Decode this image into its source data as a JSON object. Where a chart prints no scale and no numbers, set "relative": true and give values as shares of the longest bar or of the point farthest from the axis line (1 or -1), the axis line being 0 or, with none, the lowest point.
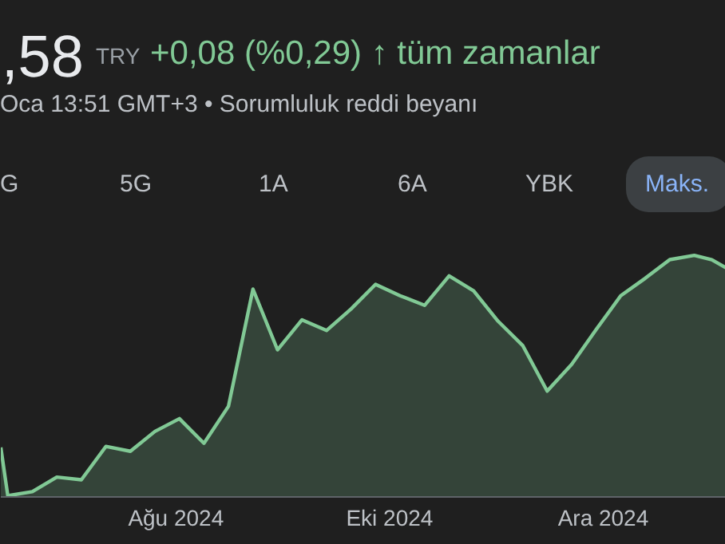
{
  "chart_data": {
    "type": "area",
    "title": ",58",
    "subtitle": "Oca 13:51 GMT+3 • Sorumluluk reddi beyanı",
    "annotations": [
      "TRY",
      "+0,08 (%0,29) ↑ tüm zamanlar",
      "G",
      "5G",
      "1A",
      "6A",
      "YBK",
      "Maks."
    ],
    "relative": true,
    "x": [
      "2024-06-12",
      "2024-06-14",
      "2024-06-21",
      "2024-06-28",
      "2024-07-05",
      "2024-07-12",
      "2024-07-19",
      "2024-07-26",
      "2024-08-02",
      "2024-08-09",
      "2024-08-16",
      "2024-08-23",
      "2024-08-30",
      "2024-09-06",
      "2024-09-13",
      "2024-09-20",
      "2024-09-27",
      "2024-10-04",
      "2024-10-11",
      "2024-10-18",
      "2024-10-25",
      "2024-11-01",
      "2024-11-08",
      "2024-11-15",
      "2024-11-22",
      "2024-11-29",
      "2024-12-06",
      "2024-12-13",
      "2024-12-20",
      "2024-12-27",
      "2025-01-01",
      "2025-01-05"
    ],
    "series": [
      {
        "color": "#81c995",
        "values": [
          0.205,
          0.005,
          0.022,
          0.082,
          0.071,
          0.209,
          0.189,
          0.271,
          0.324,
          0.222,
          0.375,
          0.86,
          0.609,
          0.733,
          0.689,
          0.778,
          0.88,
          0.833,
          0.793,
          0.915,
          0.853,
          0.727,
          0.627,
          0.438,
          0.549,
          0.693,
          0.833,
          0.905,
          0.982,
          1.0,
          0.982,
          0.949
        ]
      }
    ],
    "xlim": [
      "2024-06-12",
      "2025-01-05"
    ],
    "xticks": [
      {
        "value": "2024-08-01",
        "label": "Ağu 2024"
      },
      {
        "value": "2024-10-01",
        "label": "Eki 2024"
      },
      {
        "value": "2024-12-01",
        "label": "Ara 2024"
      }
    ],
    "line_style": "solid"
  }
}
